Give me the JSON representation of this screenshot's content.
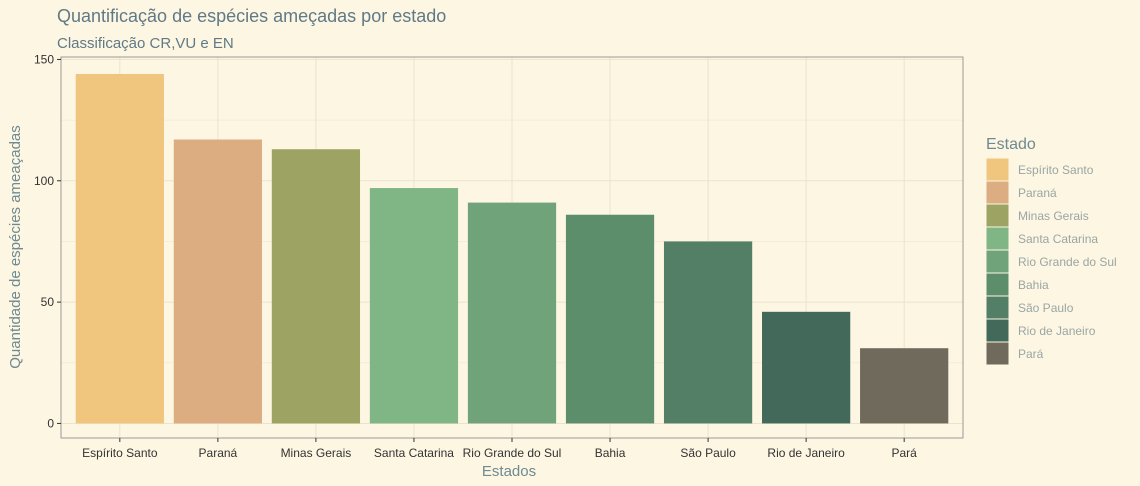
{
  "chart_data": {
    "type": "bar",
    "title": "Quantificação de espécies ameçadas por estado",
    "subtitle": "Classificação CR,VU e EN",
    "xlabel": "Estados",
    "ylabel": "Quantidade de espécies ameaçadas",
    "categories": [
      "Espírito Santo",
      "Paraná",
      "Minas Gerais",
      "Santa Catarina",
      "Rio Grande do Sul",
      "Bahia",
      "São Paulo",
      "Rio de Janeiro",
      "Pará"
    ],
    "values": [
      144,
      117,
      113,
      97,
      91,
      86,
      75,
      46,
      31
    ],
    "colors": [
      "#f0c67e",
      "#dcad80",
      "#9da463",
      "#80b685",
      "#71a37b",
      "#5d8e6c",
      "#527f65",
      "#42695a",
      "#6f6a5c"
    ],
    "ylim": [
      -6,
      151
    ],
    "yticks": [
      0,
      50,
      100,
      150
    ],
    "grid": true,
    "legend": {
      "title": "Estado",
      "position": "right"
    }
  }
}
